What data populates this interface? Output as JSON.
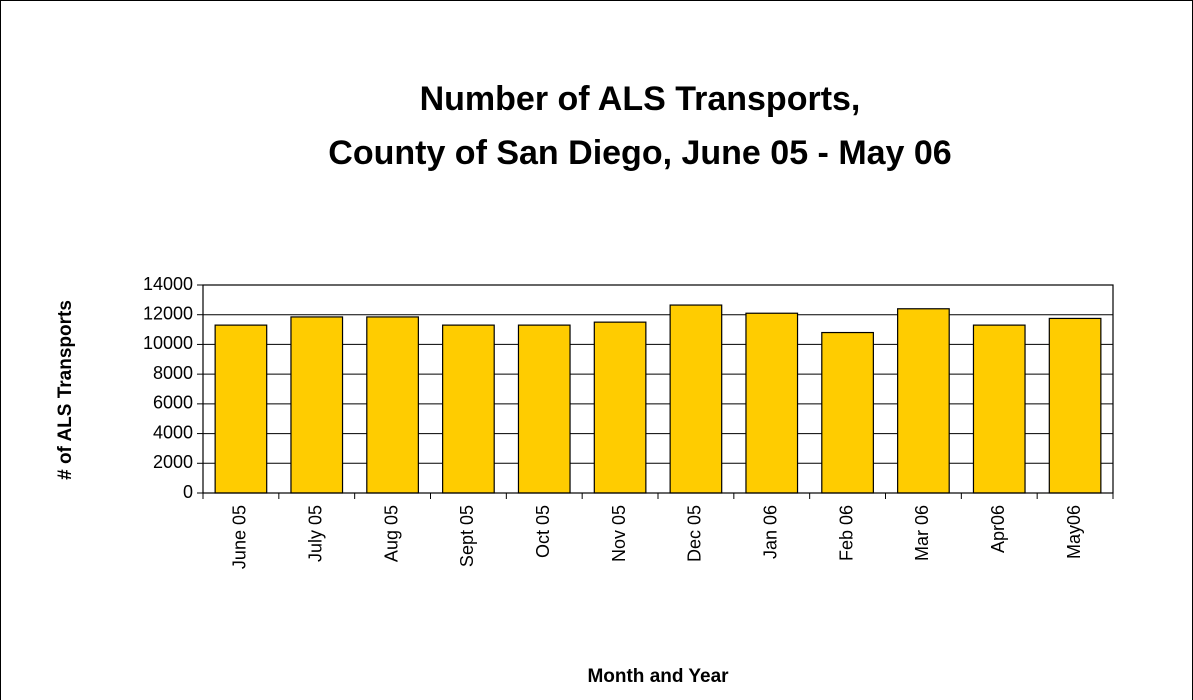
{
  "chart_data": {
    "type": "bar",
    "title": [
      "Number of ALS Transports,",
      "County of San Diego, June 05 - May 06"
    ],
    "x_label": "Month and Year",
    "y_label": "# of ALS Transports",
    "categories": [
      "June 05",
      "July 05",
      "Aug 05",
      "Sept 05",
      "Oct 05",
      "Nov 05",
      "Dec 05",
      "Jan 06",
      "Feb 06",
      "Mar 06",
      "Apr06",
      "May06"
    ],
    "values": [
      11300,
      11850,
      11850,
      11300,
      11300,
      11500,
      12650,
      12100,
      10800,
      12400,
      11300,
      11750
    ],
    "color": "#ffcc00",
    "ylim": [
      0,
      14000
    ],
    "yticks": [
      0,
      2000,
      4000,
      6000,
      8000,
      10000,
      12000,
      14000
    ],
    "grid": true
  }
}
